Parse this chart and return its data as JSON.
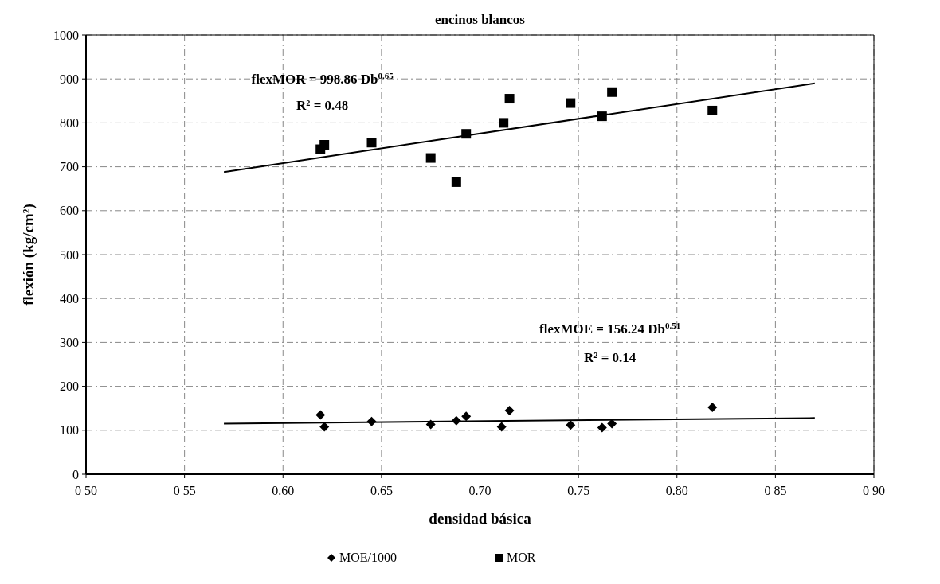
{
  "chart_data": {
    "type": "scatter",
    "title": "encinos blancos",
    "xlabel": "densidad básica",
    "ylabel": "flexión (kg/cm²)",
    "xlim": [
      0.5,
      0.9
    ],
    "xticks": [
      {
        "value": 0.5,
        "label": "0 50"
      },
      {
        "value": 0.55,
        "label": "0 55"
      },
      {
        "value": 0.6,
        "label": "0.60"
      },
      {
        "value": 0.65,
        "label": "0.65"
      },
      {
        "value": 0.7,
        "label": "0.70"
      },
      {
        "value": 0.75,
        "label": "0.75"
      },
      {
        "value": 0.8,
        "label": "0.80"
      },
      {
        "value": 0.85,
        "label": "0 85"
      },
      {
        "value": 0.9,
        "label": "0 90"
      }
    ],
    "ylim": [
      0,
      1000
    ],
    "yticks": [
      0,
      100,
      200,
      300,
      400,
      500,
      600,
      700,
      800,
      900,
      1000
    ],
    "grid": true,
    "legend": "bottom",
    "series": [
      {
        "name": "MOE/1000",
        "color": "#000000",
        "marker": "diamond",
        "x": [
          0.619,
          0.621,
          0.645,
          0.675,
          0.688,
          0.693,
          0.711,
          0.715,
          0.746,
          0.762,
          0.767,
          0.818
        ],
        "values": [
          135,
          108,
          120,
          113,
          122,
          132,
          108,
          145,
          112,
          106,
          115,
          152
        ]
      },
      {
        "name": "MOR",
        "color": "#000000",
        "marker": "square",
        "x": [
          0.619,
          0.621,
          0.645,
          0.675,
          0.688,
          0.693,
          0.712,
          0.715,
          0.746,
          0.762,
          0.767,
          0.818
        ],
        "values": [
          740,
          750,
          755,
          720,
          665,
          775,
          800,
          855,
          845,
          815,
          870,
          828
        ]
      },
      {
        "type": "line",
        "color": "#000000",
        "marker": "none",
        "x": [
          0.57,
          0.87
        ],
        "values": [
          688,
          890
        ]
      },
      {
        "type": "line",
        "color": "#000000",
        "marker": "none",
        "x": [
          0.57,
          0.87
        ],
        "values": [
          115,
          128
        ]
      }
    ],
    "annotations": [
      "flexMOR = 998.86 Db$^{0.65}$",
      "R² = 0.48",
      "flexMOE = 156.24 Db$^{0.51}$",
      "R² = 0.14"
    ]
  }
}
